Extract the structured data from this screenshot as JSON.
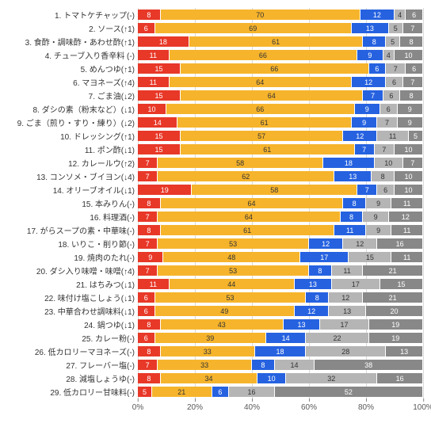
{
  "chart": {
    "type": "stacked-bar-horizontal",
    "xaxis": {
      "min": 0,
      "max": 100,
      "step": 20,
      "unit": "%"
    },
    "colors": [
      "#e83828",
      "#f6b42c",
      "#2662e0",
      "#b5b5b6",
      "#888888"
    ],
    "text_on_segments": [
      "white",
      "dark",
      "white",
      "dark",
      "white"
    ],
    "label_min_to_show": 4,
    "rows": [
      {
        "label": "1. トマトケチャップ(-)",
        "values": [
          8,
          70,
          12,
          4,
          6
        ]
      },
      {
        "label": "2. ソース(↑1)",
        "values": [
          6,
          69,
          13,
          5,
          7
        ]
      },
      {
        "label": "3. 食酢・調味酢・あわせ酢(↑1)",
        "values": [
          18,
          61,
          8,
          5,
          8
        ]
      },
      {
        "label": "4. チューブ入り香辛料 (-)",
        "values": [
          11,
          66,
          9,
          4,
          10
        ]
      },
      {
        "label": "5. めんつゆ(↑1)",
        "values": [
          15,
          66,
          6,
          7,
          6
        ]
      },
      {
        "label": "6. マヨネーズ(↑4)",
        "values": [
          11,
          64,
          12,
          6,
          7
        ]
      },
      {
        "label": "7. ごま油(↓2)",
        "values": [
          15,
          64,
          7,
          6,
          8
        ]
      },
      {
        "label": "8. ダシの素（粉末など）(↓1)",
        "values": [
          10,
          66,
          9,
          6,
          9
        ]
      },
      {
        "label": "9. ごま（煎り・すり・練り）(↓2)",
        "values": [
          14,
          61,
          9,
          7,
          9
        ]
      },
      {
        "label": "10. ドレッシング(↑1)",
        "values": [
          15,
          57,
          12,
          11,
          5
        ]
      },
      {
        "label": "11. ポン酢(↓1)",
        "values": [
          15,
          61,
          7,
          7,
          10
        ]
      },
      {
        "label": "12. カレールウ(↑2)",
        "values": [
          7,
          58,
          18,
          10,
          7
        ]
      },
      {
        "label": "13. コンソメ・ブイヨン(↓4)",
        "values": [
          7,
          62,
          13,
          8,
          10
        ]
      },
      {
        "label": "14. オリーブオイル(↓1)",
        "values": [
          19,
          58,
          7,
          6,
          10
        ]
      },
      {
        "label": "15. 本みりん(-)",
        "values": [
          8,
          64,
          8,
          9,
          11
        ]
      },
      {
        "label": "16. 料理酒(-)",
        "values": [
          7,
          64,
          8,
          9,
          12
        ]
      },
      {
        "label": "17. がらスープの素・中華味(-)",
        "values": [
          8,
          61,
          11,
          9,
          11
        ]
      },
      {
        "label": "18. いりこ・削り節(-)",
        "values": [
          7,
          53,
          12,
          12,
          16
        ]
      },
      {
        "label": "19. 焼肉のたれ(-)",
        "values": [
          9,
          48,
          17,
          15,
          11
        ]
      },
      {
        "label": "20. ダシ入り味噌・味噌(↑4)",
        "values": [
          7,
          53,
          8,
          11,
          21
        ]
      },
      {
        "label": "21. はちみつ(↓1)",
        "values": [
          11,
          44,
          13,
          17,
          15
        ]
      },
      {
        "label": "22. 味付け塩こしょう(↓1)",
        "values": [
          6,
          53,
          8,
          12,
          21
        ]
      },
      {
        "label": "23. 中華合わせ調味料(↓1)",
        "values": [
          6,
          49,
          12,
          13,
          20
        ]
      },
      {
        "label": "24. 鍋つゆ(↓1)",
        "values": [
          8,
          43,
          13,
          17,
          19
        ]
      },
      {
        "label": "25. カレー粉(-)",
        "values": [
          6,
          39,
          14,
          22,
          19
        ]
      },
      {
        "label": "26. 低カロリーマヨネーズ(-)",
        "values": [
          8,
          33,
          18,
          28,
          13
        ]
      },
      {
        "label": "27. フレーバー塩(-)",
        "values": [
          7,
          33,
          8,
          14,
          38
        ]
      },
      {
        "label": "28. 減塩しょうゆ(-)",
        "values": [
          8,
          34,
          10,
          32,
          16
        ]
      },
      {
        "label": "29. 低カロリー甘味料(-)",
        "values": [
          5,
          21,
          6,
          16,
          52
        ]
      }
    ]
  }
}
